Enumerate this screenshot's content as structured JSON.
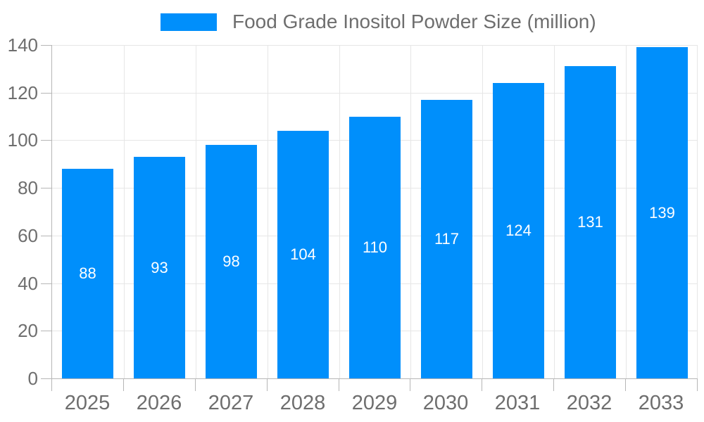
{
  "legend": {
    "label": "Food Grade Inositol Powder Size (million)"
  },
  "chart_data": {
    "type": "bar",
    "title": "Food Grade Inositol Powder Size (million)",
    "categories": [
      "2025",
      "2026",
      "2027",
      "2028",
      "2029",
      "2030",
      "2031",
      "2032",
      "2033"
    ],
    "series": [
      {
        "name": "Food Grade Inositol Powder Size (million)",
        "values": [
          88,
          93,
          98,
          104,
          110,
          117,
          124,
          131,
          139
        ]
      }
    ],
    "values": [
      88,
      93,
      98,
      104,
      110,
      117,
      124,
      131,
      139
    ],
    "value_labels": [
      88,
      93,
      98,
      104,
      110,
      117,
      124,
      131,
      139
    ],
    "xlabel": "",
    "ylabel": "",
    "ylim": [
      0,
      140
    ],
    "yticks": [
      0,
      20,
      40,
      60,
      80,
      100,
      120,
      140
    ],
    "grid": true,
    "legend_position": "top",
    "value_label_position": "inside-center"
  },
  "colors": {
    "bar": "#008FFB",
    "grid_line": "#e6e6e6",
    "axis_line": "#b6b6b6",
    "tick": "#b6b6b6",
    "axis_label": "#6e6e6e",
    "legend_text": "#6e6e6e",
    "value_label": "#ffffff",
    "background": "#ffffff"
  }
}
